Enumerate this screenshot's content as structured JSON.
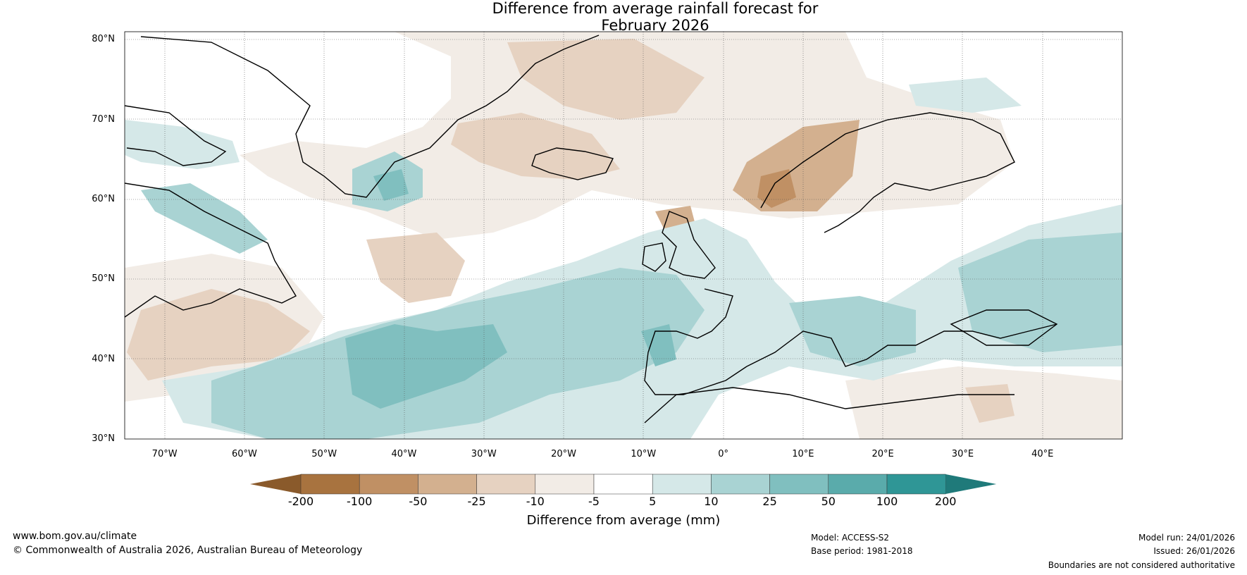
{
  "title": {
    "line1": "Difference from average rainfall forecast for",
    "line2": "February 2026"
  },
  "map": {
    "lat_labels": [
      "80°N",
      "70°N",
      "60°N",
      "50°N",
      "40°N",
      "30°N"
    ],
    "lon_labels": [
      "70°W",
      "60°W",
      "50°W",
      "40°W",
      "30°W",
      "20°W",
      "10°W",
      "0°",
      "10°E",
      "20°E",
      "30°E",
      "40°E"
    ],
    "extent": {
      "lon_min": -75,
      "lon_max": 50,
      "lat_min": 30,
      "lat_max": 81
    }
  },
  "colorbar": {
    "ticks": [
      "-200",
      "-100",
      "-50",
      "-25",
      "-10",
      "-5",
      "5",
      "10",
      "25",
      "50",
      "100",
      "200"
    ],
    "colors": [
      "#8a5a2b",
      "#a8733f",
      "#c09064",
      "#d3b08f",
      "#e6d2c1",
      "#f2ece6",
      "#ffffff",
      "#d5e8e8",
      "#a9d3d3",
      "#80bfbf",
      "#5aabab",
      "#2f9696",
      "#1f7a7a"
    ],
    "label": "Difference from average (mm)"
  },
  "footer": {
    "url": "www.bom.gov.au/climate",
    "copyright": "© Commonwealth of Australia 2026, Australian Bureau of Meteorology",
    "model": "Model: ACCESS-S2",
    "base_period": "Base period: 1981-2018",
    "model_run": "Model run: 24/01/2026",
    "issued": "Issued: 26/01/2026",
    "disclaimer": "Boundaries are not considered authoritative"
  }
}
